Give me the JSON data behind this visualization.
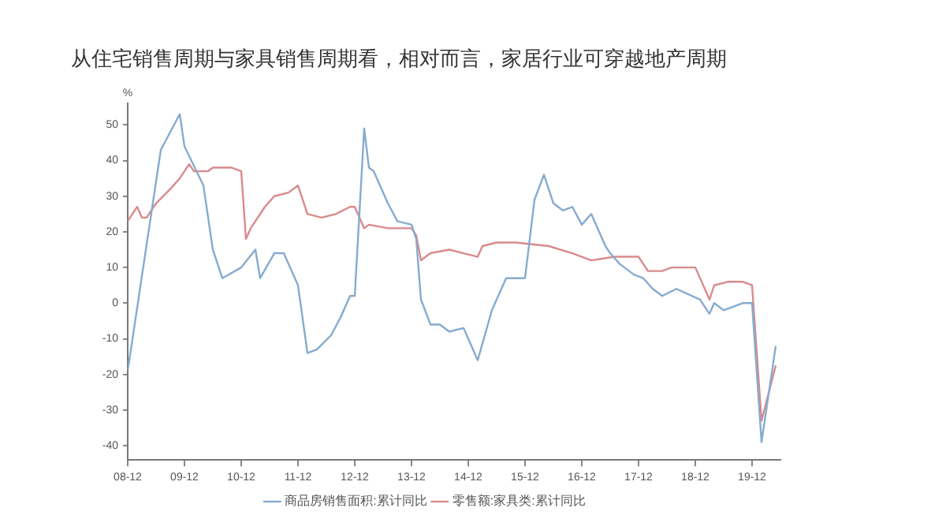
{
  "chart_data": {
    "type": "line",
    "title": "从住宅销售周期与家具销售周期看，相对而言，家居行业可穿越地产周期",
    "ylabel": "%",
    "xlim": [
      "2008-12",
      "2020-06"
    ],
    "xticks": [
      {
        "value": "2008-12",
        "label": "08-12"
      },
      {
        "value": "2009-12",
        "label": "09-12"
      },
      {
        "value": "2010-12",
        "label": "10-12"
      },
      {
        "value": "2011-12",
        "label": "11-12"
      },
      {
        "value": "2012-12",
        "label": "12-12"
      },
      {
        "value": "2013-12",
        "label": "13-12"
      },
      {
        "value": "2014-12",
        "label": "14-12"
      },
      {
        "value": "2015-12",
        "label": "15-12"
      },
      {
        "value": "2016-12",
        "label": "16-12"
      },
      {
        "value": "2017-12",
        "label": "17-12"
      },
      {
        "value": "2018-12",
        "label": "18-12"
      },
      {
        "value": "2019-12",
        "label": "19-12"
      }
    ],
    "ylim": [
      -44,
      56
    ],
    "yticks": [
      -40,
      -30,
      -20,
      -10,
      0,
      10,
      20,
      30,
      40,
      50
    ],
    "grid": false,
    "legend": "bottom",
    "marker": "none",
    "line_style": "solid",
    "series": [
      {
        "name": "商品房销售面积:累计同比",
        "color": "#86abcf",
        "x": [
          "2008-12",
          "2009-07",
          "2009-11",
          "2009-12",
          "2010-04",
          "2010-06",
          "2010-08",
          "2010-12",
          "2011-03",
          "2011-04",
          "2011-07",
          "2011-09",
          "2011-12",
          "2012-02",
          "2012-04",
          "2012-07",
          "2012-09",
          "2012-11",
          "2012-12",
          "2013-02",
          "2013-03",
          "2013-04",
          "2013-07",
          "2013-09",
          "2013-12",
          "2014-01",
          "2014-02",
          "2014-04",
          "2014-06",
          "2014-08",
          "2014-11",
          "2015-02",
          "2015-05",
          "2015-08",
          "2015-12",
          "2016-02",
          "2016-04",
          "2016-06",
          "2016-08",
          "2016-10",
          "2016-12",
          "2017-02",
          "2017-05",
          "2017-06",
          "2017-08",
          "2017-11",
          "2018-01",
          "2018-03",
          "2018-05",
          "2018-08",
          "2019-01",
          "2019-03",
          "2019-04",
          "2019-06",
          "2019-10",
          "2019-12",
          "2020-02",
          "2020-05"
        ],
        "values": [
          -19,
          43,
          53,
          44,
          33,
          15,
          7,
          10,
          15,
          7,
          14,
          14,
          5,
          -14,
          -13,
          -9,
          -4,
          2,
          2,
          49,
          38,
          37,
          28,
          23,
          22,
          18,
          1,
          -6,
          -6,
          -8,
          -7,
          -16,
          -2,
          7,
          7,
          29,
          36,
          28,
          26,
          27,
          22,
          25,
          16,
          14,
          11,
          8,
          7,
          4,
          2,
          4,
          1,
          -3,
          0,
          -2,
          0,
          0,
          -39,
          -12
        ]
      },
      {
        "name": "零售额:家具类:累计同比",
        "color": "#d98a8d",
        "x": [
          "2008-12",
          "2009-02",
          "2009-03",
          "2009-04",
          "2009-06",
          "2009-09",
          "2009-11",
          "2010-01",
          "2010-02",
          "2010-05",
          "2010-06",
          "2010-10",
          "2010-12",
          "2011-01",
          "2011-02",
          "2011-05",
          "2011-07",
          "2011-10",
          "2011-12",
          "2012-02",
          "2012-05",
          "2012-08",
          "2012-11",
          "2012-12",
          "2013-02",
          "2013-03",
          "2013-07",
          "2013-12",
          "2014-01",
          "2014-02",
          "2014-04",
          "2014-08",
          "2014-11",
          "2015-02",
          "2015-03",
          "2015-06",
          "2015-10",
          "2016-05",
          "2016-10",
          "2017-02",
          "2017-07",
          "2017-12",
          "2018-02",
          "2018-05",
          "2018-07",
          "2018-12",
          "2019-03",
          "2019-04",
          "2019-07",
          "2019-10",
          "2019-12",
          "2020-02",
          "2020-05"
        ],
        "values": [
          23,
          27,
          24,
          24,
          28,
          32,
          35,
          39,
          37,
          37,
          38,
          38,
          37,
          18,
          21,
          27,
          30,
          31,
          33,
          25,
          24,
          25,
          27,
          27,
          21,
          22,
          21,
          21,
          19,
          12,
          14,
          15,
          14,
          13,
          16,
          17,
          17,
          16,
          14,
          12,
          13,
          13,
          9,
          9,
          10,
          10,
          1,
          5,
          6,
          6,
          5,
          -33,
          -17.5
        ]
      }
    ]
  }
}
